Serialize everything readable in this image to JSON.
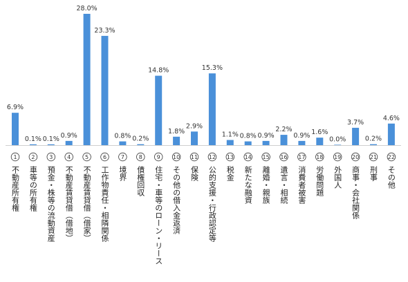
{
  "chart_data": {
    "type": "bar",
    "title": "",
    "xlabel": "",
    "ylabel": "",
    "ylim": [
      0,
      28
    ],
    "grid": false,
    "legend": "none",
    "bar_color": "#4a90d9",
    "value_suffix": "%",
    "categories": [
      {
        "num": "1",
        "label": "不動産所有権"
      },
      {
        "num": "2",
        "label": "車等の所有権"
      },
      {
        "num": "3",
        "label": "預金・株等の流動資産"
      },
      {
        "num": "4",
        "label": "不動産賃貸借（借地）"
      },
      {
        "num": "5",
        "label": "不動産賃貸借（借家）"
      },
      {
        "num": "6",
        "label": "工作物責任・相隣関係"
      },
      {
        "num": "7",
        "label": "境界"
      },
      {
        "num": "8",
        "label": "債権回収"
      },
      {
        "num": "9",
        "label": "住宅・車等のローン・リース"
      },
      {
        "num": "10",
        "label": "その他の借入金返済"
      },
      {
        "num": "11",
        "label": "保険"
      },
      {
        "num": "12",
        "label": "公的支援・行政認定等"
      },
      {
        "num": "13",
        "label": "税金"
      },
      {
        "num": "14",
        "label": "新たな融資"
      },
      {
        "num": "15",
        "label": "離婚・親族"
      },
      {
        "num": "16",
        "label": "遺言・相続"
      },
      {
        "num": "17",
        "label": "消費者被害"
      },
      {
        "num": "18",
        "label": "労働問題"
      },
      {
        "num": "19",
        "label": "外国人"
      },
      {
        "num": "20",
        "label": "商事・会社関係"
      },
      {
        "num": "21",
        "label": "刑事"
      },
      {
        "num": "22",
        "label": "その他"
      }
    ],
    "values": [
      6.9,
      0.1,
      0.1,
      0.9,
      28.0,
      23.3,
      0.8,
      0.2,
      14.8,
      1.8,
      2.9,
      15.3,
      1.1,
      0.8,
      0.9,
      2.2,
      0.9,
      1.6,
      0.0,
      3.7,
      0.2,
      4.6
    ]
  }
}
